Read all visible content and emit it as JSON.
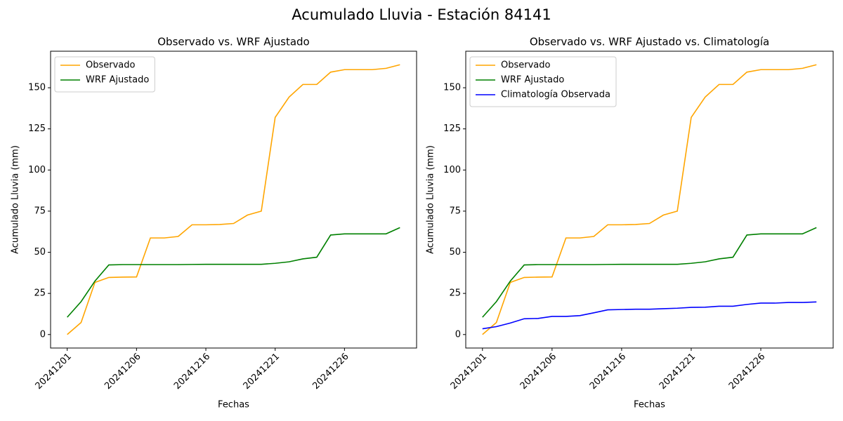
{
  "title": "Acumulado Lluvia - Estación 84141",
  "chart_data": [
    {
      "type": "line",
      "title": "Observado vs. WRF Ajustado",
      "xlabel": "Fechas",
      "ylabel": "Acumulado Lluvia (mm)",
      "categories": [
        "20241201",
        null,
        null,
        null,
        null,
        "20241206",
        null,
        null,
        null,
        null,
        "20241216",
        null,
        null,
        null,
        null,
        "20241221",
        null,
        null,
        null,
        null,
        "20241226",
        null,
        null,
        null,
        null
      ],
      "series": [
        {
          "name": "Observado",
          "color": "orange",
          "values": [
            0,
            7.3,
            31.7,
            34.7,
            34.9,
            35,
            58.7,
            58.7,
            59.6,
            66.7,
            66.7,
            66.9,
            67.5,
            72.6,
            75,
            132,
            144.3,
            152,
            152,
            159.5,
            161,
            161,
            161,
            161.8,
            164
          ]
        },
        {
          "name": "WRF Ajustado",
          "color": "green",
          "values": [
            10.5,
            20,
            32.5,
            42.3,
            42.5,
            42.5,
            42.5,
            42.5,
            42.5,
            42.6,
            42.7,
            42.7,
            42.7,
            42.7,
            42.7,
            43.3,
            44.2,
            46,
            47,
            60.5,
            61.2,
            61.2,
            61.2,
            61.2,
            65
          ]
        }
      ],
      "ylim": [
        -8.2,
        172.2
      ],
      "yticks": [
        0,
        25,
        50,
        75,
        100,
        125,
        150
      ],
      "legend": "upper left"
    },
    {
      "type": "line",
      "title": "Observado vs. WRF Ajustado vs. Climatología",
      "xlabel": "Fechas",
      "ylabel": "Acumulado Lluvia (mm)",
      "categories": [
        "20241201",
        null,
        null,
        null,
        null,
        "20241206",
        null,
        null,
        null,
        null,
        "20241216",
        null,
        null,
        null,
        null,
        "20241221",
        null,
        null,
        null,
        null,
        "20241226",
        null,
        null,
        null,
        null
      ],
      "series": [
        {
          "name": "Observado",
          "color": "orange",
          "values": [
            0,
            7.3,
            31.7,
            34.7,
            34.9,
            35,
            58.7,
            58.7,
            59.6,
            66.7,
            66.7,
            66.9,
            67.5,
            72.6,
            75,
            132,
            144.3,
            152,
            152,
            159.5,
            161,
            161,
            161,
            161.8,
            164
          ]
        },
        {
          "name": "WRF Ajustado",
          "color": "green",
          "values": [
            10.5,
            20,
            32.5,
            42.3,
            42.5,
            42.5,
            42.5,
            42.5,
            42.5,
            42.6,
            42.7,
            42.7,
            42.7,
            42.7,
            42.7,
            43.3,
            44.2,
            46,
            47,
            60.5,
            61.2,
            61.2,
            61.2,
            61.2,
            65
          ]
        },
        {
          "name": "Climatología Observada",
          "color": "blue",
          "values": [
            3.5,
            4.8,
            7,
            9.6,
            9.8,
            11,
            11,
            11.5,
            13.2,
            15,
            15.2,
            15.4,
            15.4,
            15.7,
            16,
            16.5,
            16.6,
            17.2,
            17.2,
            18.3,
            19.1,
            19.1,
            19.5,
            19.5,
            19.8
          ]
        }
      ],
      "ylim": [
        -8.2,
        172.2
      ],
      "yticks": [
        0,
        25,
        50,
        75,
        100,
        125,
        150
      ],
      "legend": "upper left"
    }
  ]
}
